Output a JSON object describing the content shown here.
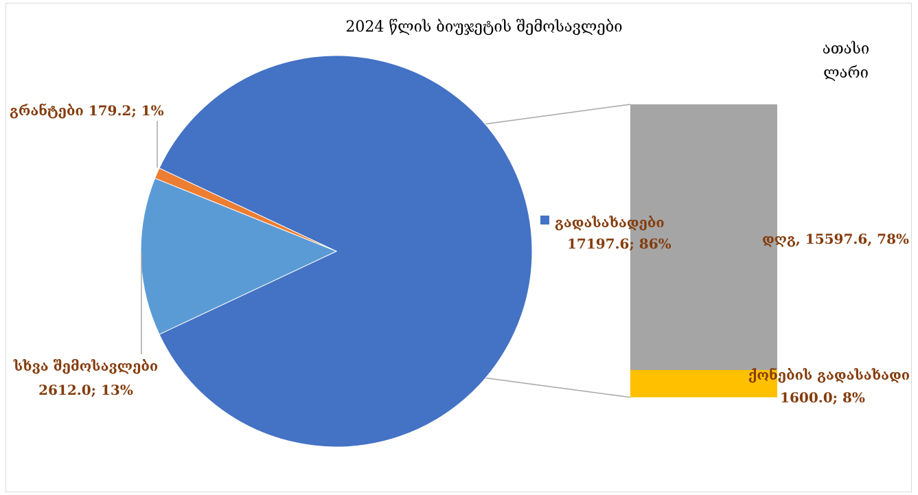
{
  "chart_data": {
    "type": "pie-of-bar",
    "title": "2024 წლის ბიუჯეტის შემოსავლები",
    "unit": [
      "ათასი",
      "ლარი"
    ],
    "pie": [
      {
        "name": "გადასახადები",
        "value": 17197.6,
        "percent": 86,
        "label": "17197.6; 86%",
        "color": "#4472c4"
      },
      {
        "name": "გრანტები",
        "value": 179.2,
        "percent": 1,
        "label": "გრანტები 179.2; 1%",
        "color": "#ed7d31"
      },
      {
        "name": "სხვა შემოსავლები",
        "value": 2612.0,
        "percent": 13,
        "label_line1": "სხვა შემოსავლები",
        "label_line2": "2612.0; 13%",
        "color": "#5b9bd5"
      }
    ],
    "bar": [
      {
        "name": "დღგ",
        "value": 15597.6,
        "percent": 78,
        "label": "დღგ, 15597.6, 78%",
        "color": "#a5a5a5"
      },
      {
        "name": "ქონების გადასახადი",
        "value": 1600.0,
        "percent": 8,
        "label_line1": "ქონების გადასახადი",
        "label_line2": "1600.0; 8%",
        "color": "#ffc000"
      }
    ],
    "legend": {
      "label": "გადასახადები",
      "placement": "center-right"
    }
  },
  "colors": {
    "label_text": "#843c0c",
    "connector": "#a6a6a6"
  }
}
